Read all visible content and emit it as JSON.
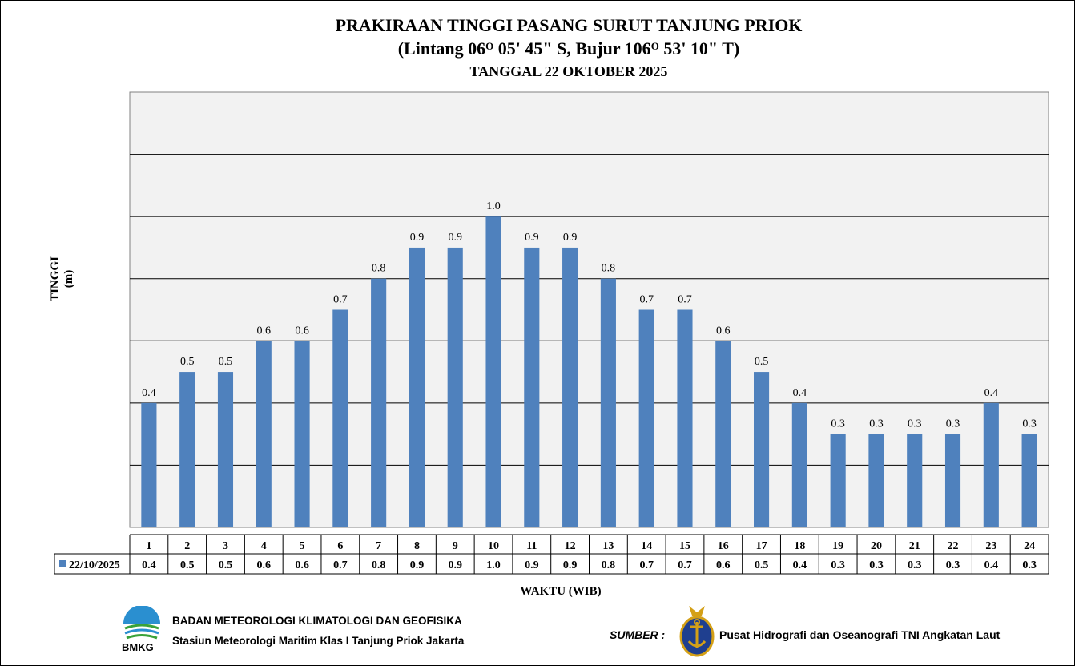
{
  "title": {
    "line1": "PRAKIRAAN TINGGI PASANG SURUT TANJUNG PRIOK",
    "line2_prefix": "(Lintang 06",
    "line2_deg1": "O",
    "line2_mid": " 05' 45\" S, Bujur 106",
    "line2_deg2": "O",
    "line2_suffix": " 53' 10\" T)",
    "line3": "TANGGAL 22 OKTOBER 2025"
  },
  "chart_data": {
    "type": "bar",
    "categories": [
      "1",
      "2",
      "3",
      "4",
      "5",
      "6",
      "7",
      "8",
      "9",
      "10",
      "11",
      "12",
      "13",
      "14",
      "15",
      "16",
      "17",
      "18",
      "19",
      "20",
      "21",
      "22",
      "23",
      "24"
    ],
    "series": [
      {
        "name": "22/10/2025",
        "values": [
          0.4,
          0.5,
          0.5,
          0.6,
          0.6,
          0.7,
          0.8,
          0.9,
          0.9,
          1.0,
          0.9,
          0.9,
          0.8,
          0.7,
          0.7,
          0.6,
          0.5,
          0.4,
          0.3,
          0.3,
          0.3,
          0.3,
          0.4,
          0.3
        ],
        "color": "#4f81bd"
      }
    ],
    "ylabel": "TINGGI (m)",
    "xlabel": "WAKTU (WIB)",
    "ylim": [
      0,
      1.4
    ],
    "grid": true,
    "data_table": true
  },
  "footer": {
    "bmkg_text": "BMKG",
    "org": "BADAN METEOROLOGI KLIMATOLOGI DAN GEOFISIKA",
    "station": "Stasiun Meteorologi Maritim Klas I Tanjung Priok Jakarta",
    "sumber": "SUMBER :",
    "source": "Pusat Hidrografi dan Oseanografi  TNI Angkatan Laut"
  },
  "colors": {
    "bar": "#4f81bd",
    "plot_bg": "#f2f2f2",
    "navy_blue": "#1f3f8f",
    "navy_gold": "#d4a017"
  }
}
